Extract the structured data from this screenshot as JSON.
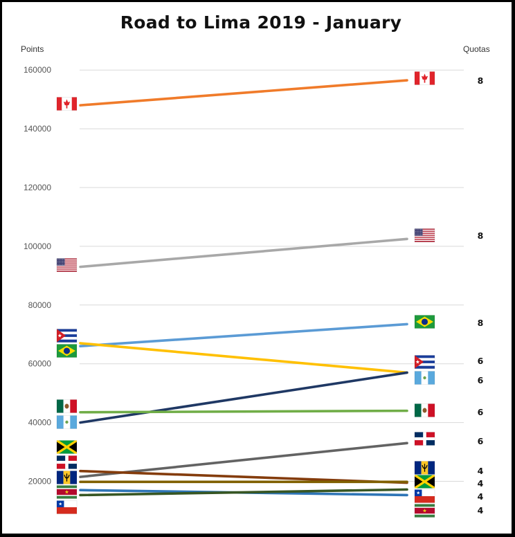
{
  "chart_data": {
    "type": "line",
    "title": "Road to Lima 2019 - January",
    "ylabel": "Points",
    "y2label": "Quotas",
    "ylim": [
      10000,
      165000
    ],
    "yticks": [
      20000,
      40000,
      60000,
      80000,
      100000,
      120000,
      140000,
      160000
    ],
    "grid": true,
    "series": [
      {
        "country": "Canada",
        "flag": "canada",
        "color": "#f07b2a",
        "start": 148000,
        "end": 156500,
        "quota": "8"
      },
      {
        "country": "United States",
        "flag": "usa",
        "color": "#a8a8a8",
        "start": 93000,
        "end": 102500,
        "quota": "8"
      },
      {
        "country": "Brazil",
        "flag": "brazil",
        "color": "#5b9bd5",
        "start": 66000,
        "end": 73500,
        "quota": "8"
      },
      {
        "country": "Cuba",
        "flag": "cuba",
        "color": "#ffc000",
        "start": 67000,
        "end": 57000,
        "quota": "6"
      },
      {
        "country": "Guatemala",
        "flag": "guatemala",
        "color": "#1f3864",
        "start": 40000,
        "end": 57000,
        "quota": "6"
      },
      {
        "country": "Mexico",
        "flag": "mexico",
        "color": "#70ad47",
        "start": 43500,
        "end": 44000,
        "quota": "6"
      },
      {
        "country": "Dominican Republic",
        "flag": "dominican",
        "color": "#636363",
        "start": 21500,
        "end": 33000,
        "quota": "6"
      },
      {
        "country": "Barbados",
        "flag": "barbados",
        "color": "#843c0c",
        "start": 23500,
        "end": 19500,
        "quota": "4"
      },
      {
        "country": "Jamaica",
        "flag": "jamaica",
        "color": "#806000",
        "start": 19800,
        "end": 19800,
        "quota": "4"
      },
      {
        "country": "Chile",
        "flag": "chile",
        "color": "#2e75b6",
        "start": 17000,
        "end": 15300,
        "quota": "4"
      },
      {
        "country": "Suriname",
        "flag": "suriname",
        "color": "#375623",
        "start": 15300,
        "end": 17200,
        "quota": "4"
      }
    ]
  },
  "colors": {
    "grid": "#d9d9d9",
    "tick_label": "#555555",
    "quota_label": "#111111"
  }
}
